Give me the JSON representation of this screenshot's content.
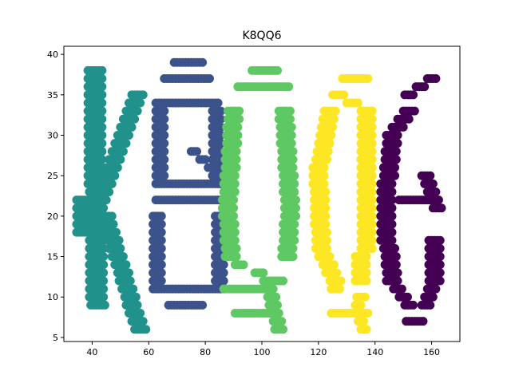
{
  "chart_data": {
    "type": "scatter",
    "title": "K8QQ6",
    "xlabel": "",
    "ylabel": "",
    "xlim": [
      30,
      170
    ],
    "ylim": [
      4.5,
      41
    ],
    "xticks": [
      40,
      60,
      80,
      100,
      120,
      140,
      160
    ],
    "yticks": [
      5,
      10,
      15,
      20,
      25,
      30,
      35,
      40
    ],
    "grid": false,
    "legend": "none",
    "series": [
      {
        "color": "#21918c",
        "glyph": "K",
        "strokes": [
          [
            41,
            38,
            42,
            9,
            5.5
          ],
          [
            37,
            22,
            37,
            18,
            5
          ],
          [
            56,
            35,
            43,
            22,
            4.5
          ],
          [
            45,
            20,
            57,
            6,
            4.5
          ]
        ]
      },
      {
        "color": "#3b528b",
        "glyph": "8",
        "strokes": [
          [
            70,
            39,
            78,
            39,
            2.5
          ],
          [
            67,
            37,
            80,
            37,
            3
          ],
          [
            65,
            34,
            83,
            34,
            3
          ],
          [
            64,
            34,
            64,
            24,
            3
          ],
          [
            84,
            33,
            84,
            24,
            3
          ],
          [
            66,
            24,
            80,
            24,
            3
          ],
          [
            64,
            22,
            84,
            22,
            3
          ],
          [
            63,
            20,
            63,
            11,
            3
          ],
          [
            85,
            20,
            85,
            11,
            3
          ],
          [
            65,
            11,
            83,
            11,
            3
          ],
          [
            68,
            9,
            78,
            9,
            2.5
          ],
          [
            76,
            28,
            82,
            26,
            2
          ]
        ]
      },
      {
        "color": "#5ec962",
        "glyph": "Q",
        "strokes": [
          [
            98,
            38,
            104,
            38,
            3
          ],
          [
            93,
            36,
            108,
            36,
            3
          ],
          [
            90,
            33,
            88,
            21,
            4
          ],
          [
            108,
            33,
            110,
            21,
            4
          ],
          [
            88,
            21,
            89,
            15,
            4
          ],
          [
            110,
            21,
            109,
            15,
            4
          ],
          [
            92,
            14,
            106,
            12,
            3
          ],
          [
            88,
            11,
            102,
            11,
            3
          ],
          [
            92,
            8,
            104,
            8,
            3
          ],
          [
            102,
            12,
            106,
            6,
            3
          ]
        ]
      },
      {
        "color": "#fde725",
        "glyph": "Q",
        "strokes": [
          [
            130,
            37,
            136,
            37,
            3
          ],
          [
            127,
            35,
            137,
            33,
            4
          ],
          [
            124,
            33,
            121,
            27,
            4
          ],
          [
            137,
            33,
            137,
            27,
            4
          ],
          [
            120,
            26,
            121,
            16,
            4
          ],
          [
            137,
            26,
            137,
            16,
            4
          ],
          [
            122,
            15,
            126,
            12,
            4
          ],
          [
            135,
            15,
            135,
            12,
            4
          ],
          [
            126,
            11,
            135,
            10,
            3
          ],
          [
            126,
            8,
            136,
            8,
            3
          ],
          [
            134,
            9,
            136,
            6,
            2.5
          ]
        ]
      },
      {
        "color": "#440154",
        "glyph": "6",
        "strokes": [
          [
            160,
            37,
            152,
            35,
            3
          ],
          [
            152,
            33,
            146,
            30,
            4
          ],
          [
            146,
            30,
            145,
            25,
            4
          ],
          [
            144,
            24,
            144,
            17,
            4
          ],
          [
            145,
            16,
            146,
            12,
            4
          ],
          [
            148,
            11,
            152,
            9,
            3
          ],
          [
            152,
            7,
            156,
            7,
            2.5
          ],
          [
            158,
            9,
            160,
            11,
            3
          ],
          [
            161,
            17,
            161,
            12,
            4
          ],
          [
            158,
            25,
            162,
            21,
            3
          ],
          [
            150,
            22,
            160,
            22,
            3
          ]
        ]
      }
    ]
  }
}
